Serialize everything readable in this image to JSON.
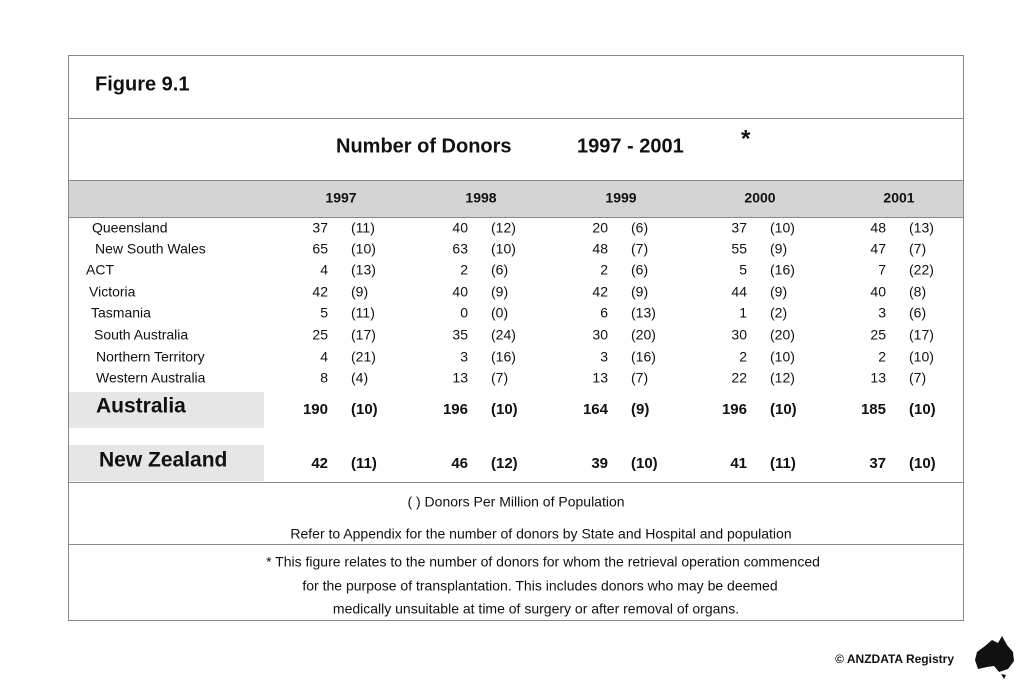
{
  "header": {
    "figure": "Figure 9.1",
    "title": "Number of Donors",
    "period": "1997 - 2001",
    "asterisk": "*"
  },
  "table": {
    "years": [
      "1997",
      "1998",
      "1999",
      "2000",
      "2001"
    ],
    "rows": [
      {
        "region": "Queensland",
        "cells": [
          [
            37,
            "(11)"
          ],
          [
            40,
            "(12)"
          ],
          [
            20,
            "(6)"
          ],
          [
            37,
            "(10)"
          ],
          [
            48,
            "(13)"
          ]
        ]
      },
      {
        "region": "New South Wales",
        "cells": [
          [
            65,
            "(10)"
          ],
          [
            63,
            "(10)"
          ],
          [
            48,
            "(7)"
          ],
          [
            55,
            "(9)"
          ],
          [
            47,
            "(7)"
          ]
        ]
      },
      {
        "region": "ACT",
        "cells": [
          [
            4,
            "(13)"
          ],
          [
            2,
            "(6)"
          ],
          [
            2,
            "(6)"
          ],
          [
            5,
            "(16)"
          ],
          [
            7,
            "(22)"
          ]
        ]
      },
      {
        "region": "Victoria",
        "cells": [
          [
            42,
            "(9)"
          ],
          [
            40,
            "(9)"
          ],
          [
            42,
            "(9)"
          ],
          [
            44,
            "(9)"
          ],
          [
            40,
            "(8)"
          ]
        ]
      },
      {
        "region": "Tasmania",
        "cells": [
          [
            5,
            "(11)"
          ],
          [
            0,
            "(0)"
          ],
          [
            6,
            "(13)"
          ],
          [
            1,
            "(2)"
          ],
          [
            3,
            "(6)"
          ]
        ]
      },
      {
        "region": "South Australia",
        "cells": [
          [
            25,
            "(17)"
          ],
          [
            35,
            "(24)"
          ],
          [
            30,
            "(20)"
          ],
          [
            30,
            "(20)"
          ],
          [
            25,
            "(17)"
          ]
        ]
      },
      {
        "region": "Northern Territory",
        "cells": [
          [
            4,
            "(21)"
          ],
          [
            3,
            "(16)"
          ],
          [
            3,
            "(16)"
          ],
          [
            2,
            "(10)"
          ],
          [
            2,
            "(10)"
          ]
        ]
      },
      {
        "region": "Western Australia",
        "cells": [
          [
            8,
            "(4)"
          ],
          [
            13,
            "(7)"
          ],
          [
            13,
            "(7)"
          ],
          [
            22,
            "(12)"
          ],
          [
            13,
            "(7)"
          ]
        ]
      }
    ],
    "totals": [
      {
        "region": "Australia",
        "cells": [
          [
            190,
            "(10)"
          ],
          [
            196,
            "(10)"
          ],
          [
            164,
            "(9)"
          ],
          [
            196,
            "(10)"
          ],
          [
            185,
            "(10)"
          ]
        ]
      },
      {
        "region": "New Zealand",
        "cells": [
          [
            42,
            "(11)"
          ],
          [
            46,
            "(12)"
          ],
          [
            39,
            "(10)"
          ],
          [
            41,
            "(11)"
          ],
          [
            37,
            "(10)"
          ]
        ]
      }
    ]
  },
  "notes": {
    "legend": "(    ) Donors Per Million of  Population",
    "refer": "Refer to Appendix for the number of donors by State and Hospital and population",
    "footnote": [
      "*  This figure relates to the number of donors for whom the retrieval operation commenced",
      "for the purpose of transplantation. This includes donors who may be deemed",
      "medically unsuitable at time of surgery or after removal of organs."
    ]
  },
  "footer": {
    "copyright": "© ANZDATA Registry"
  }
}
